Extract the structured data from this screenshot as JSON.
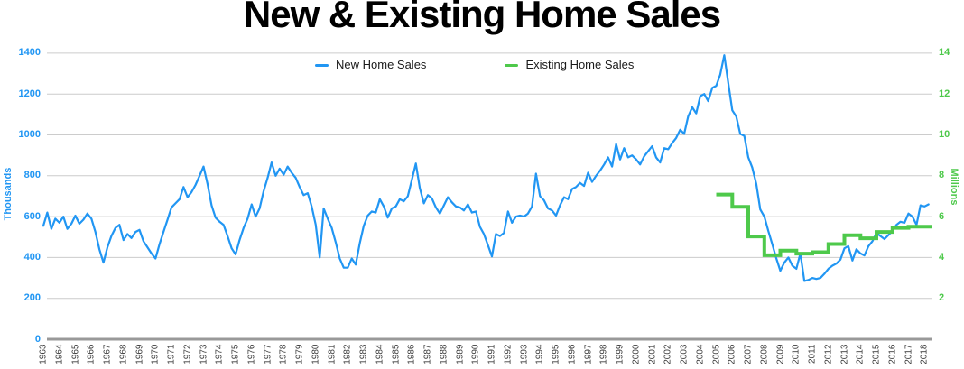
{
  "title": "New & Existing Home Sales",
  "legend": {
    "items": [
      {
        "label": "New Home Sales",
        "color": "#2196f3"
      },
      {
        "label": "Existing Home Sales",
        "color": "#4ec94b"
      }
    ]
  },
  "left_axis": {
    "title": "Thousands",
    "color": "#2196f3",
    "ticks": [
      0,
      200,
      400,
      600,
      800,
      1000,
      1200,
      1400
    ]
  },
  "right_axis": {
    "title": "Millions",
    "color": "#4ec94b",
    "ticks": [
      2,
      4,
      6,
      8,
      10,
      12,
      14
    ]
  },
  "x_axis": {
    "years": [
      1963,
      1964,
      1965,
      1966,
      1967,
      1968,
      1969,
      1970,
      1971,
      1972,
      1973,
      1974,
      1975,
      1976,
      1977,
      1978,
      1979,
      1980,
      1981,
      1982,
      1983,
      1984,
      1985,
      1986,
      1987,
      1988,
      1989,
      1990,
      1991,
      1992,
      1993,
      1994,
      1995,
      1996,
      1997,
      1998,
      1999,
      2000,
      2001,
      2002,
      2003,
      2004,
      2005,
      2006,
      2007,
      2008,
      2009,
      2010,
      2011,
      2012,
      2013,
      2014,
      2015,
      2016,
      2017,
      2018
    ]
  },
  "colors": {
    "grid": "#cccccc",
    "baseline": "#999999",
    "title": "#000000",
    "x_label": "#3d3d3d"
  },
  "chart_data": {
    "type": "line",
    "title": "New & Existing Home Sales",
    "left_ylabel": "Thousands",
    "right_ylabel": "Millions",
    "left_ylim": [
      0,
      1400
    ],
    "right_ylim": [
      0,
      14
    ],
    "x_range": [
      1963,
      2018.5
    ],
    "grid": "horizontal",
    "legend_position": "top-center",
    "series": [
      {
        "name": "New Home Sales",
        "axis": "left",
        "units": "thousands",
        "style": "line",
        "color": "#2196f3",
        "start_year": 1963,
        "points_per_year": 4,
        "values": [
          555,
          620,
          540,
          590,
          570,
          600,
          540,
          565,
          605,
          565,
          585,
          615,
          590,
          525,
          440,
          375,
          450,
          505,
          545,
          560,
          485,
          515,
          495,
          525,
          535,
          480,
          450,
          420,
          395,
          465,
          525,
          585,
          645,
          665,
          685,
          745,
          695,
          720,
          755,
          800,
          845,
          760,
          655,
          595,
          575,
          560,
          505,
          445,
          415,
          485,
          545,
          590,
          660,
          600,
          640,
          725,
          790,
          865,
          800,
          835,
          805,
          845,
          815,
          790,
          745,
          705,
          715,
          650,
          560,
          400,
          640,
          590,
          545,
          475,
          395,
          350,
          350,
          395,
          365,
          470,
          555,
          605,
          625,
          620,
          685,
          650,
          595,
          640,
          650,
          685,
          675,
          700,
          780,
          860,
          740,
          665,
          705,
          690,
          645,
          615,
          655,
          695,
          670,
          650,
          645,
          630,
          660,
          620,
          625,
          550,
          515,
          460,
          405,
          515,
          505,
          520,
          625,
          570,
          600,
          605,
          600,
          615,
          650,
          810,
          700,
          680,
          640,
          630,
          605,
          655,
          695,
          685,
          735,
          745,
          765,
          750,
          815,
          770,
          800,
          825,
          855,
          890,
          845,
          955,
          880,
          935,
          890,
          900,
          880,
          855,
          895,
          920,
          945,
          890,
          865,
          935,
          930,
          960,
          985,
          1025,
          1005,
          1090,
          1135,
          1105,
          1190,
          1200,
          1165,
          1230,
          1240,
          1295,
          1390,
          1255,
          1120,
          1090,
          1005,
          995,
          890,
          840,
          760,
          635,
          600,
          530,
          465,
          395,
          335,
          375,
          400,
          360,
          345,
          420,
          285,
          290,
          300,
          295,
          300,
          320,
          345,
          360,
          370,
          390,
          445,
          455,
          385,
          440,
          420,
          410,
          455,
          480,
          520,
          505,
          490,
          510,
          530,
          560,
          575,
          570,
          615,
          600,
          560,
          655,
          650,
          660
        ]
      },
      {
        "name": "Existing Home Sales",
        "axis": "right",
        "units": "millions",
        "style": "step",
        "color": "#4ec94b",
        "years": [
          2005,
          2006,
          2007,
          2008,
          2009,
          2010,
          2011,
          2012,
          2013,
          2014,
          2015,
          2016,
          2017,
          2018
        ],
        "values": [
          7.08,
          6.48,
          5.03,
          4.11,
          4.34,
          4.19,
          4.26,
          4.66,
          5.09,
          4.94,
          5.25,
          5.45,
          5.51,
          5.51
        ],
        "end_x": 2018.45
      }
    ]
  }
}
